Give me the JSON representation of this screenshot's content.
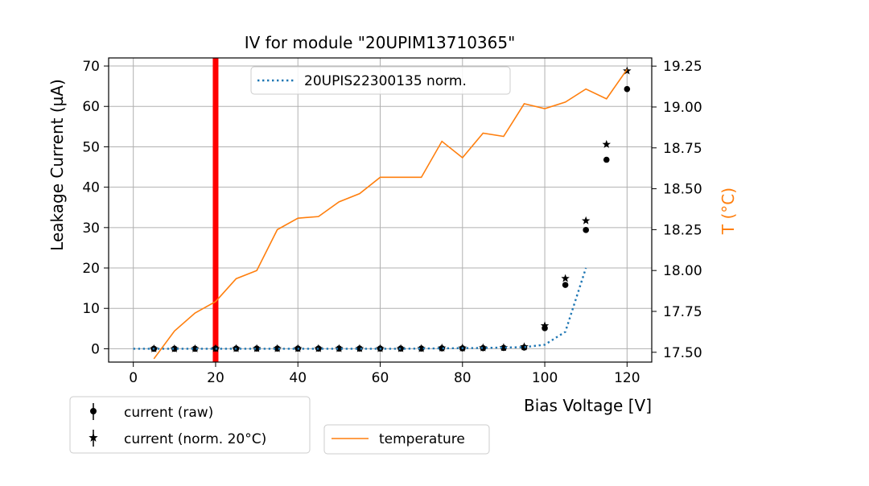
{
  "chart_data": {
    "type": "scatter",
    "title": "IV for module \"20UPIM13710365\"",
    "xlabel": "Bias Voltage [V]",
    "ylabel": "Leakage Current (µA)",
    "y2label": "T (°C)",
    "xlim": [
      -6,
      126
    ],
    "ylim": [
      -3.3,
      72
    ],
    "y2lim": [
      17.44,
      19.3
    ],
    "xticks": [
      0,
      20,
      40,
      60,
      80,
      100,
      120
    ],
    "yticks": [
      0,
      10,
      20,
      30,
      40,
      50,
      60,
      70
    ],
    "y2ticks": [
      17.5,
      17.75,
      18.0,
      18.25,
      18.5,
      18.75,
      19.0,
      19.25
    ],
    "y2ticklabels": [
      "17.50",
      "17.75",
      "18.00",
      "18.25",
      "18.50",
      "18.75",
      "19.00",
      "19.25"
    ],
    "grid": true,
    "vline": {
      "x": 20,
      "color": "#ff0000"
    },
    "series": [
      {
        "name": "current (raw)",
        "kind": "scatter-dot",
        "axis": "left",
        "color": "#000000",
        "x": [
          5,
          10,
          15,
          20,
          25,
          30,
          35,
          40,
          45,
          50,
          55,
          60,
          65,
          70,
          75,
          80,
          85,
          90,
          95,
          100,
          105,
          110,
          115,
          120
        ],
        "values": [
          0.0,
          0.0,
          0.0,
          0.05,
          0.05,
          0.05,
          0.05,
          0.05,
          0.05,
          0.05,
          0.05,
          0.05,
          0.05,
          0.05,
          0.1,
          0.1,
          0.15,
          0.2,
          0.3,
          5.1,
          15.8,
          29.4,
          46.8,
          64.3
        ]
      },
      {
        "name": "current (norm. 20°C)",
        "kind": "scatter-star",
        "axis": "left",
        "color": "#000000",
        "x": [
          5,
          10,
          15,
          20,
          25,
          30,
          35,
          40,
          45,
          50,
          55,
          60,
          65,
          70,
          75,
          80,
          85,
          90,
          95,
          100,
          105,
          110,
          115,
          120
        ],
        "values": [
          0.0,
          0.0,
          0.0,
          0.05,
          0.05,
          0.05,
          0.05,
          0.05,
          0.05,
          0.05,
          0.05,
          0.05,
          0.05,
          0.05,
          0.2,
          0.2,
          0.25,
          0.3,
          0.5,
          5.7,
          17.4,
          31.7,
          50.6,
          68.8
        ]
      },
      {
        "name": "20UPIS22300135 norm.",
        "kind": "dotted-line",
        "axis": "left",
        "color": "#1f77b4",
        "x": [
          0,
          5,
          10,
          15,
          20,
          25,
          30,
          35,
          40,
          45,
          50,
          55,
          60,
          65,
          70,
          75,
          80,
          85,
          90,
          95,
          100,
          105,
          110
        ],
        "values": [
          0,
          0,
          0,
          0,
          0,
          0,
          0,
          0,
          0,
          0,
          0,
          0,
          0,
          0,
          0.05,
          0.1,
          0.15,
          0.2,
          0.3,
          0.4,
          1.0,
          4.2,
          20.0
        ]
      },
      {
        "name": "temperature",
        "kind": "line",
        "axis": "right",
        "color": "#ff7f0e",
        "x": [
          5,
          10,
          15,
          20,
          25,
          30,
          35,
          40,
          45,
          50,
          55,
          60,
          65,
          70,
          75,
          80,
          85,
          90,
          95,
          100,
          105,
          110,
          115,
          120
        ],
        "values": [
          17.46,
          17.63,
          17.74,
          17.81,
          17.95,
          18.0,
          18.25,
          18.32,
          18.33,
          18.42,
          18.47,
          18.57,
          18.57,
          18.57,
          18.79,
          18.69,
          18.84,
          18.82,
          19.02,
          18.99,
          19.03,
          19.11,
          19.05,
          19.23
        ]
      }
    ],
    "legends": {
      "inner": [
        "20UPIS22300135 norm."
      ],
      "bottom_left": [
        "current (raw)",
        "current (norm. 20°C)"
      ],
      "bottom_center": [
        "temperature"
      ]
    }
  }
}
